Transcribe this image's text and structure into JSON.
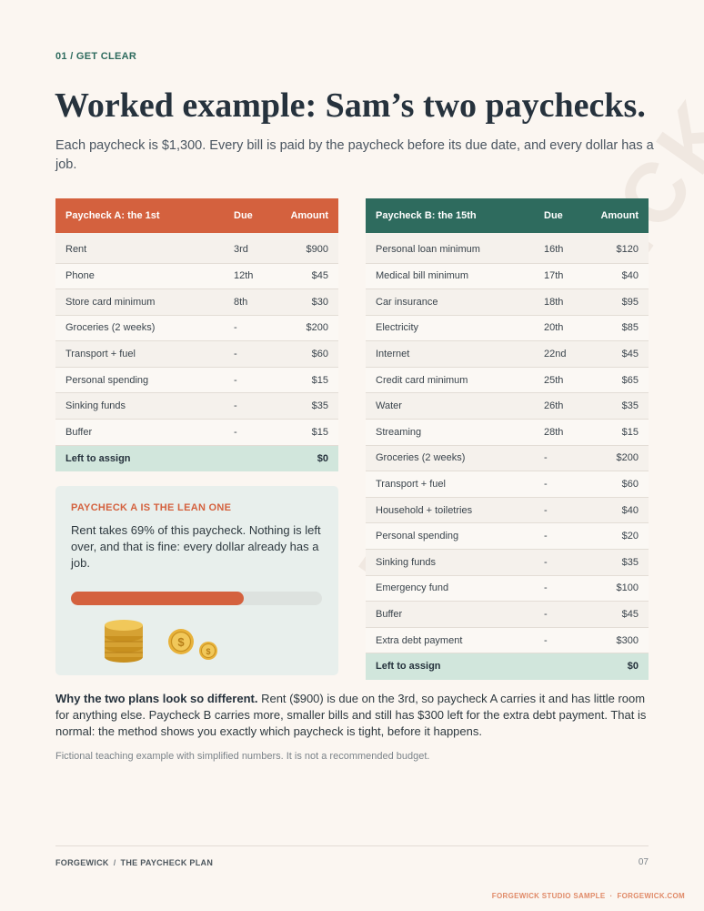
{
  "watermark": "FORGEWICK",
  "section_label": "01 / GET CLEAR",
  "title": "Worked example: Sam’s two paychecks.",
  "lede": "Each paycheck is $1,300. Every bill is paid by the paycheck before its due date, and every dollar has a job.",
  "paycheck_a": {
    "header": {
      "name": "Paycheck A: the 1st",
      "due": "Due",
      "amount": "Amount"
    },
    "rows": [
      {
        "name": "Rent",
        "due": "3rd",
        "amount": "$900"
      },
      {
        "name": "Phone",
        "due": "12th",
        "amount": "$45"
      },
      {
        "name": "Store card minimum",
        "due": "8th",
        "amount": "$30"
      },
      {
        "name": "Groceries (2 weeks)",
        "due": "-",
        "amount": "$200"
      },
      {
        "name": "Transport + fuel",
        "due": "-",
        "amount": "$60"
      },
      {
        "name": "Personal spending",
        "due": "-",
        "amount": "$15"
      },
      {
        "name": "Sinking funds",
        "due": "-",
        "amount": "$35"
      },
      {
        "name": "Buffer",
        "due": "-",
        "amount": "$15"
      }
    ],
    "total": {
      "label": "Left to assign",
      "amount": "$0"
    }
  },
  "paycheck_b": {
    "header": {
      "name": "Paycheck B: the 15th",
      "due": "Due",
      "amount": "Amount"
    },
    "rows": [
      {
        "name": "Personal loan minimum",
        "due": "16th",
        "amount": "$120"
      },
      {
        "name": "Medical bill minimum",
        "due": "17th",
        "amount": "$40"
      },
      {
        "name": "Car insurance",
        "due": "18th",
        "amount": "$95"
      },
      {
        "name": "Electricity",
        "due": "20th",
        "amount": "$85"
      },
      {
        "name": "Internet",
        "due": "22nd",
        "amount": "$45"
      },
      {
        "name": "Credit card minimum",
        "due": "25th",
        "amount": "$65"
      },
      {
        "name": "Water",
        "due": "26th",
        "amount": "$35"
      },
      {
        "name": "Streaming",
        "due": "28th",
        "amount": "$15"
      },
      {
        "name": "Groceries (2 weeks)",
        "due": "-",
        "amount": "$200"
      },
      {
        "name": "Transport + fuel",
        "due": "-",
        "amount": "$60"
      },
      {
        "name": "Household + toiletries",
        "due": "-",
        "amount": "$40"
      },
      {
        "name": "Personal spending",
        "due": "-",
        "amount": "$20"
      },
      {
        "name": "Sinking funds",
        "due": "-",
        "amount": "$35"
      },
      {
        "name": "Emergency fund",
        "due": "-",
        "amount": "$100"
      },
      {
        "name": "Buffer",
        "due": "-",
        "amount": "$45"
      },
      {
        "name": "Extra debt payment",
        "due": "-",
        "amount": "$300"
      }
    ],
    "total": {
      "label": "Left to assign",
      "amount": "$0"
    }
  },
  "callout": {
    "title": "PAYCHECK A IS THE LEAN ONE",
    "text": "Rent takes 69% of this paycheck. Nothing is left over, and that is fine: every dollar already has a job.",
    "progress_percent": 69,
    "illustration": "coins-icon",
    "coin_symbol": "$"
  },
  "explanation": {
    "lead": "Why the two plans look so different.",
    "body": " Rent ($900) is due on the 3rd, so paycheck A carries it and has little room for anything else. Paycheck B carries more, smaller bills and still has $300 left for the extra debt payment. That is normal: the method shows you exactly which paycheck is tight, before it happens."
  },
  "note": "Fictional teaching example with simplified numbers. It is not a recommended budget.",
  "footer": {
    "brand": "FORGEWICK",
    "separator": "/",
    "doc": "THE PAYCHECK PLAN",
    "page": "07"
  },
  "stamp": {
    "left": "FORGEWICK STUDIO SAMPLE",
    "dot": "·",
    "right": "FORGEWICK.COM"
  },
  "colors": {
    "accent_orange": "#d4613e",
    "accent_green": "#2e6b5e",
    "total_row": "#d1e6dc",
    "background": "#fbf6f1",
    "callout_bg": "#e8efec"
  }
}
